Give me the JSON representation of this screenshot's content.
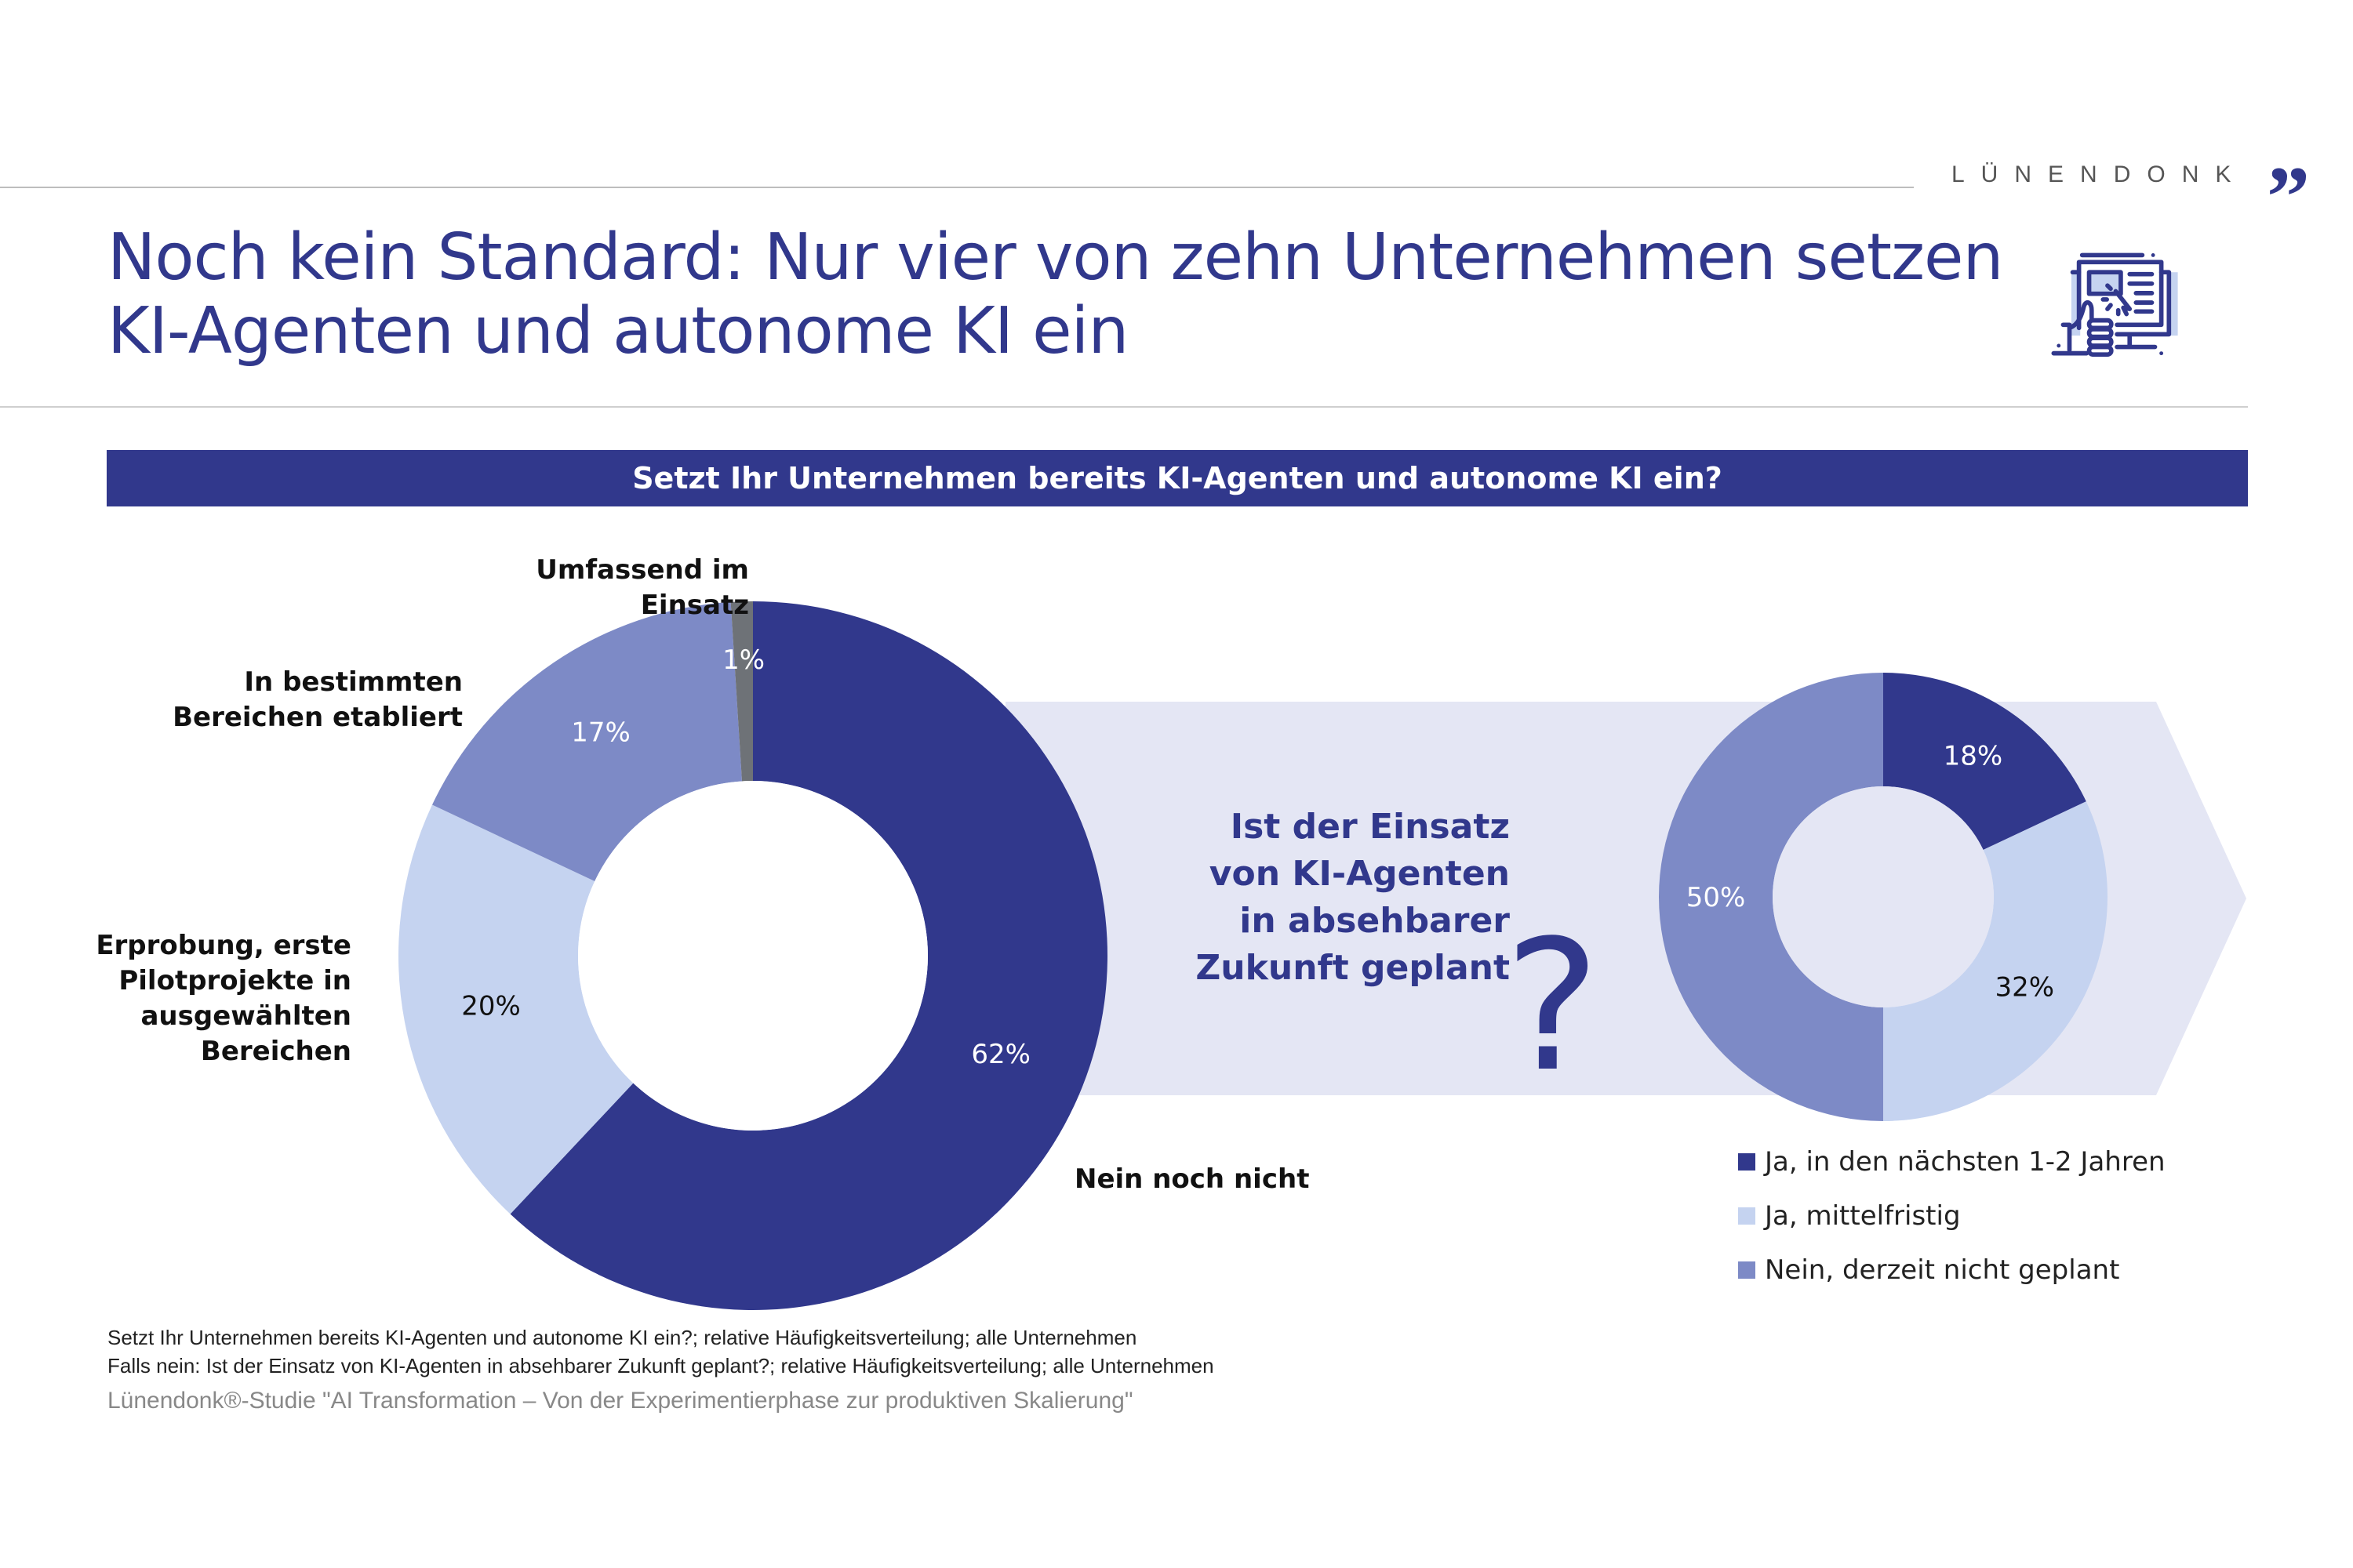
{
  "header": {
    "brand": "LÜNENDONK",
    "brand_mark": "”",
    "title_lines": [
      "Noch kein Standard: Nur vier von zehn Unternehmen setzen",
      "KI-Agenten und autonome KI ein"
    ],
    "icon": "computer-click-hand-icon"
  },
  "banner": "Setzt Ihr Unternehmen bereits KI-Agenten und autonome KI ein?",
  "colors": {
    "navy": "#31388c",
    "slate": "#7d8ac6",
    "light": "#c5d3f0",
    "gray": "#6e7277",
    "band": "#e4e6f4"
  },
  "chart_data": [
    {
      "type": "pie",
      "donut": true,
      "title": "Setzt Ihr Unternehmen bereits KI-Agenten und autonome KI ein?",
      "slices": [
        {
          "label": "Nein noch nicht",
          "value": 62,
          "display": "62%",
          "color": "#31388c",
          "text_color": "#ffffff"
        },
        {
          "label": "Erprobung, erste Pilotprojekte in ausgewählten Bereichen",
          "value": 20,
          "display": "20%",
          "color": "#c5d3f0",
          "text_color": "#111111"
        },
        {
          "label": "In bestimmten Bereichen etabliert",
          "value": 17,
          "display": "17%",
          "color": "#7d8ac6",
          "text_color": "#ffffff"
        },
        {
          "label": "Umfassend im Einsatz",
          "value": 1,
          "display": "1%",
          "color": "#6e7277",
          "text_color": "#ffffff"
        }
      ],
      "outside_labels": {
        "umfassend": "Umfassend im Einsatz",
        "bestimmt": [
          "In bestimmten",
          "Bereichen etabliert"
        ],
        "erprobung": [
          "Erprobung, erste",
          "Pilotprojekte in",
          "ausgewählten",
          "Bereichen"
        ],
        "nein": "Nein noch nicht"
      }
    },
    {
      "type": "pie",
      "donut": true,
      "title": "Ist der Einsatz von KI-Agenten in absehbarer Zukunft geplant?",
      "slices": [
        {
          "label": "Ja, in den nächsten 1-2 Jahren",
          "value": 18,
          "display": "18%",
          "color": "#31388c",
          "text_color": "#ffffff"
        },
        {
          "label": "Ja, mittelfristig",
          "value": 32,
          "display": "32%",
          "color": "#c5d3f0",
          "text_color": "#111111"
        },
        {
          "label": "Nein, derzeit nicht geplant",
          "value": 50,
          "display": "50%",
          "color": "#7d8ac6",
          "text_color": "#ffffff"
        }
      ],
      "legend": "bottom-right"
    }
  ],
  "question": [
    "Ist der Einsatz",
    "von KI-Agenten",
    "in absehbarer",
    "Zukunft geplant"
  ],
  "question_mark": "?",
  "legend": [
    {
      "label": "Ja, in den nächsten 1-2 Jahren",
      "color": "#31388c"
    },
    {
      "label": "Ja, mittelfristig",
      "color": "#c5d3f0"
    },
    {
      "label": "Nein, derzeit nicht geplant",
      "color": "#7d8ac6"
    }
  ],
  "footnotes": [
    "Setzt Ihr Unternehmen bereits KI-Agenten und autonome KI ein?; relative Häufigkeitsverteilung; alle Unternehmen",
    "Falls nein: Ist der Einsatz von KI-Agenten in absehbarer Zukunft geplant?; relative Häufigkeitsverteilung; alle Unternehmen"
  ],
  "source": "Lünendonk®-Studie \"AI Transformation – Von der Experimentierphase zur produktiven Skalierung\""
}
